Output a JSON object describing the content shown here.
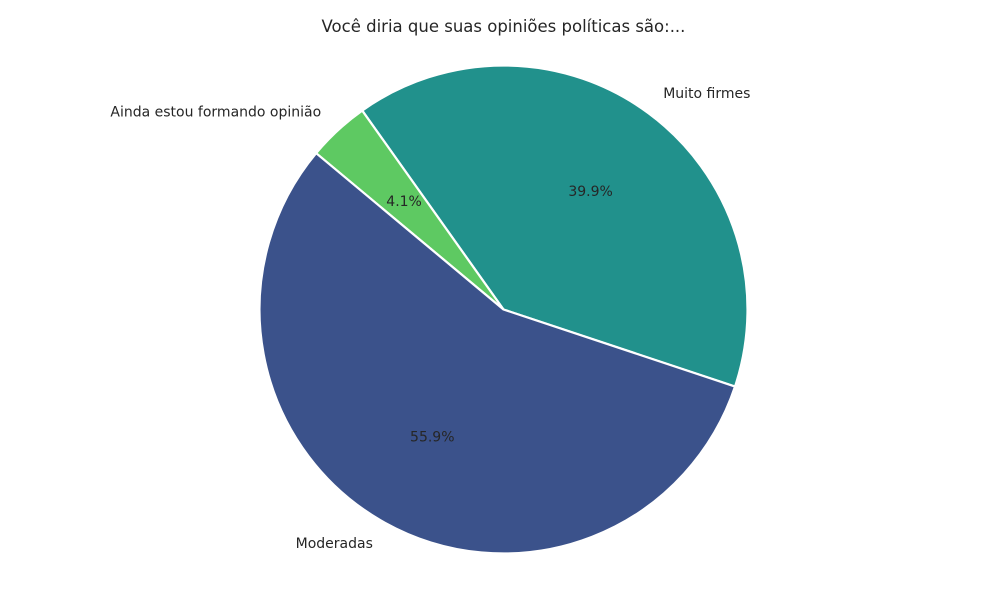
{
  "chart_data": {
    "type": "pie",
    "title": "Você diria que suas opiniões políticas são:...",
    "slices": [
      {
        "label": "Muito firmes",
        "value": 39.9,
        "pct_label": "39.9%",
        "color": "#21918c"
      },
      {
        "label": "Ainda estou formando opinião",
        "value": 4.1,
        "pct_label": "4.1%",
        "color": "#5ec962"
      },
      {
        "label": "Moderadas",
        "value": 55.9,
        "pct_label": "55.9%",
        "color": "#3b528b"
      }
    ],
    "start_angle_deg": -18.4,
    "direction": "counterclockwise",
    "legend_position": "none",
    "grid": "off",
    "text_color": "#262626",
    "background_color": "#ffffff",
    "slice_edge_color": "#ffffff"
  }
}
